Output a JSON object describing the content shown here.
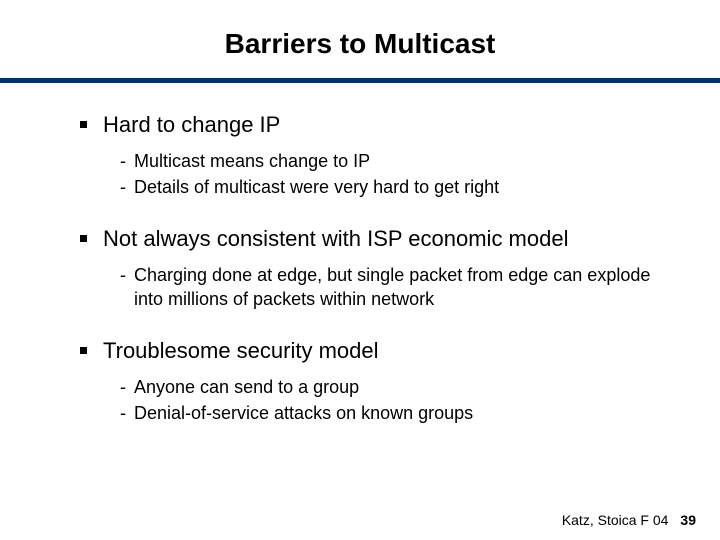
{
  "title": "Barriers to Multicast",
  "rule_color": "#003366",
  "bullets": [
    {
      "text": "Hard to change IP",
      "subs": [
        "Multicast means change to IP",
        "Details of multicast were very hard to get right"
      ]
    },
    {
      "text": "Not always consistent with ISP economic model",
      "subs": [
        "Charging done at edge, but single packet from edge can explode into millions of packets within network"
      ]
    },
    {
      "text": "Troublesome security model",
      "subs": [
        "Anyone can send to a group",
        "Denial-of-service attacks on known groups"
      ]
    }
  ],
  "footer": {
    "credit": "Katz, Stoica F 04",
    "page": "39"
  }
}
